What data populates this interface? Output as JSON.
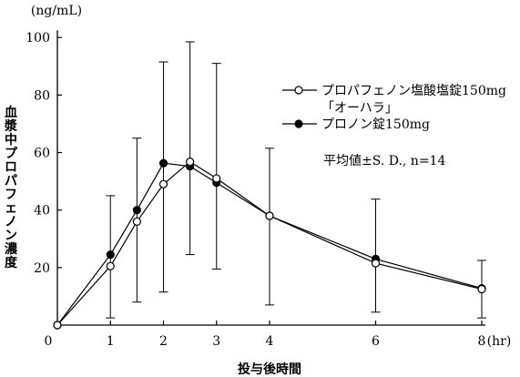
{
  "chart_data": {
    "type": "line",
    "title": "",
    "xlabel": "投与後時間",
    "x_unit": "(hr)",
    "ylabel": "血漿中プロパフェノン濃度",
    "y_unit": "(ng/mL)",
    "xlim": [
      0,
      8
    ],
    "ylim": [
      0,
      100
    ],
    "x_ticks": [
      0,
      1,
      2,
      3,
      4,
      6,
      8
    ],
    "y_ticks": [
      20,
      40,
      60,
      80,
      100
    ],
    "grid": false,
    "legend_position": "top-right",
    "annotation": "平均値±S. D., n=14",
    "series": [
      {
        "name": "プロパフェノン塩酸塩錠150mg「オーハラ」",
        "name_lines": [
          "プロパフェノン塩酸塩錠150mg",
          "「オーハラ」"
        ],
        "marker": "open-circle",
        "x": [
          0,
          1,
          1.5,
          2,
          2.5,
          3,
          4,
          6,
          8
        ],
        "y": [
          0,
          20.5,
          36,
          49,
          56.8,
          51,
          38,
          21.5,
          12.5
        ]
      },
      {
        "name": "プロノン錠150mg",
        "marker": "filled-circle",
        "x": [
          0,
          1,
          1.5,
          2,
          2.5,
          3,
          4,
          6,
          8
        ],
        "y": [
          0,
          24.5,
          40,
          56.3,
          55.2,
          49.5,
          38,
          23,
          12.8
        ]
      }
    ],
    "error_bars": [
      {
        "x": 1,
        "low": 2.5,
        "high": 45
      },
      {
        "x": 1.5,
        "low": 8,
        "high": 65
      },
      {
        "x": 2,
        "low": 11.5,
        "high": 91.5
      },
      {
        "x": 2.5,
        "low": 24.5,
        "high": 98.5
      },
      {
        "x": 3,
        "low": 19.5,
        "high": 91
      },
      {
        "x": 4,
        "low": 7,
        "high": 61.5
      },
      {
        "x": 6,
        "low": 4.5,
        "high": 43.8
      },
      {
        "x": 8,
        "low": 2.5,
        "high": 22.5
      }
    ]
  },
  "colors": {
    "ink": "#000000",
    "background": "#ffffff"
  }
}
